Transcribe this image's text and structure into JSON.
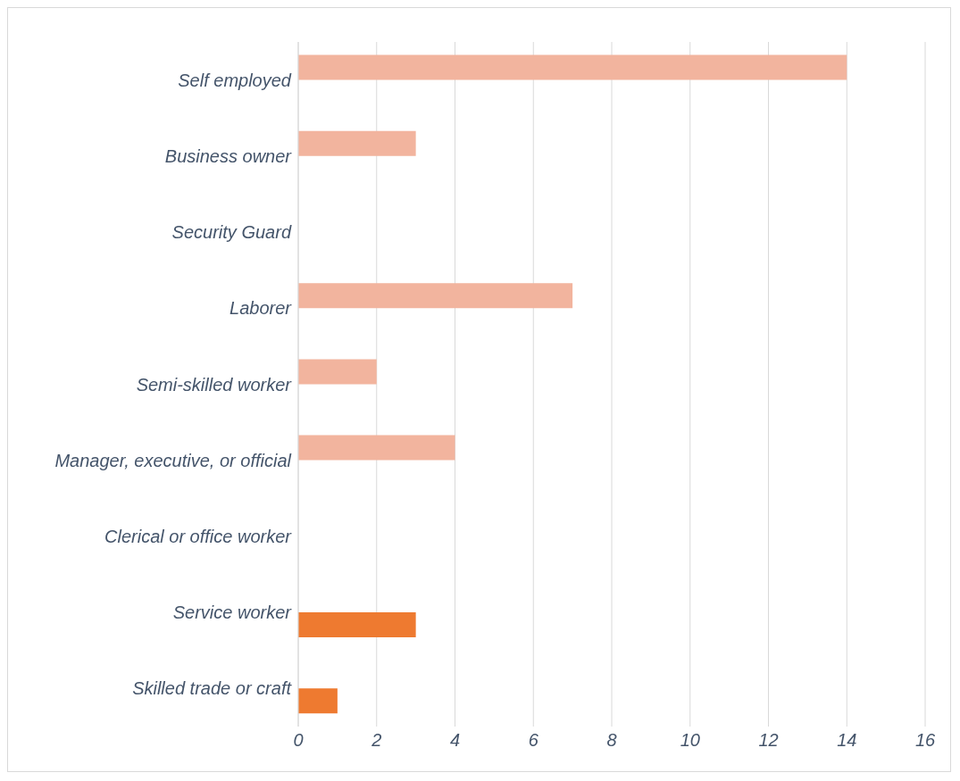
{
  "chart_data": {
    "type": "bar",
    "orientation": "horizontal",
    "categories": [
      "Self employed",
      "Business owner",
      "Security Guard",
      "Laborer",
      "Semi-skilled worker",
      "Manager, executive, or official",
      "Clerical or office worker",
      "Service worker",
      "Skilled trade or craft"
    ],
    "series": [
      {
        "color": "#f2b49e",
        "values": [
          14,
          3,
          0,
          7,
          2,
          4,
          0,
          0,
          0
        ]
      },
      {
        "color": "#ee7a30",
        "values": [
          0,
          0,
          0,
          0,
          0,
          0,
          0,
          3,
          1
        ]
      }
    ],
    "xlim": [
      0,
      16
    ],
    "xticks": [
      0,
      2,
      4,
      6,
      8,
      10,
      12,
      14,
      16
    ],
    "grid": "x",
    "legend": false
  }
}
